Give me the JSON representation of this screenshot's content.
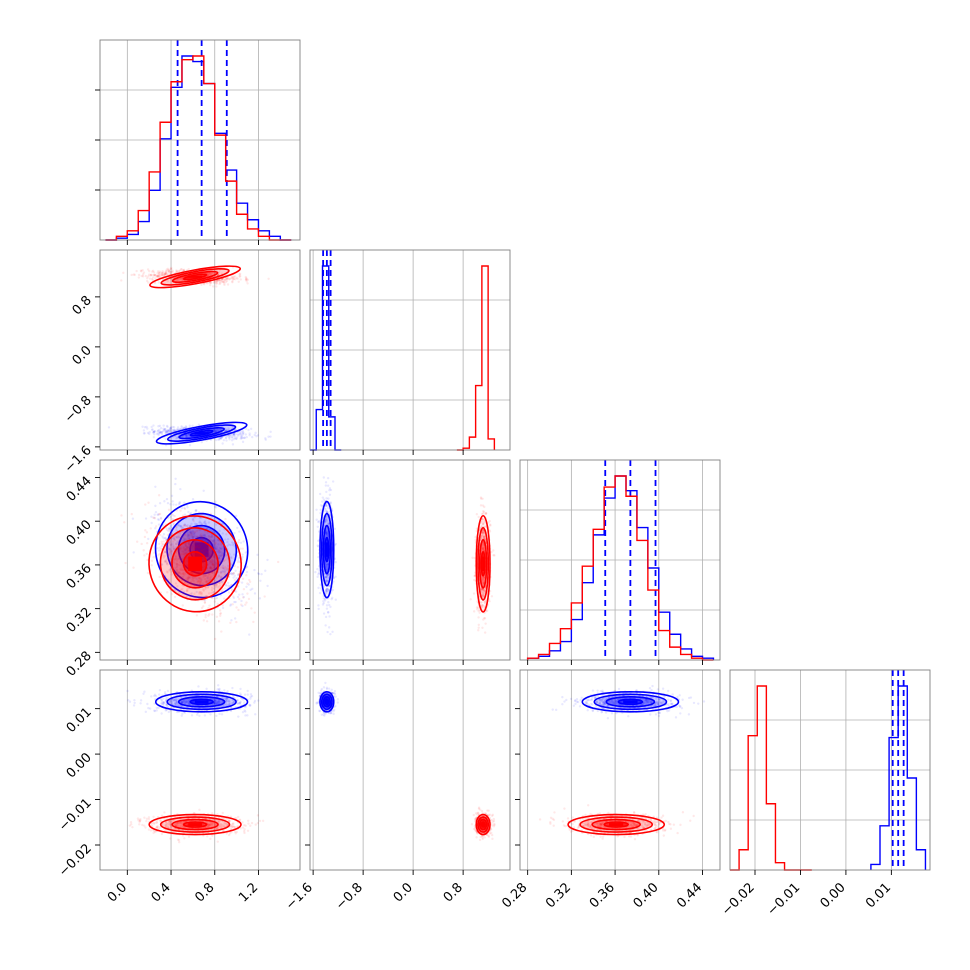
{
  "chart_data": {
    "type": "corner",
    "dims": 4,
    "colors": {
      "series_a": "#0000ff",
      "series_b": "#ff0000"
    },
    "axes": [
      {
        "range": [
          -0.25,
          1.58
        ],
        "ticks": [
          0.0,
          0.4,
          0.8,
          1.2
        ],
        "tick_labels": [
          "0.0",
          "0.4",
          "0.8",
          "1.2"
        ]
      },
      {
        "range": [
          -1.65,
          1.55
        ],
        "ticks": [
          -1.6,
          -0.8,
          0.0,
          0.8
        ],
        "tick_labels": [
          "−1.6",
          "−0.8",
          "0.0",
          "0.8"
        ]
      },
      {
        "range": [
          0.273,
          0.456
        ],
        "ticks": [
          0.28,
          0.32,
          0.36,
          0.4,
          0.44
        ],
        "tick_labels": [
          "0.28",
          "0.32",
          "0.36",
          "0.40",
          "0.44"
        ]
      },
      {
        "range": [
          -0.0255,
          0.0185
        ],
        "ticks": [
          -0.02,
          -0.01,
          0.0,
          0.01
        ],
        "tick_labels": [
          "−0.02",
          "−0.01",
          "0.00",
          "0.01"
        ]
      }
    ],
    "series": [
      {
        "color_key": "series_a",
        "means": [
          0.68,
          -1.38,
          0.374,
          0.0115
        ],
        "stds": [
          0.21,
          0.055,
          0.022,
          0.0011
        ],
        "quantiles": [
          [
            0.46,
            0.68,
            0.91
          ],
          [
            -1.44,
            -1.38,
            -1.32
          ],
          [
            0.351,
            0.374,
            0.397
          ],
          [
            0.0103,
            0.0115,
            0.0127
          ]
        ],
        "hist_edges": [
          [
            -0.2,
            -0.1,
            0.0,
            0.1,
            0.2,
            0.3,
            0.4,
            0.5,
            0.6,
            0.7,
            0.8,
            0.9,
            1.0,
            1.1,
            1.2,
            1.3,
            1.4,
            1.5
          ],
          [
            -1.65,
            -1.55,
            -1.45,
            -1.35,
            -1.25,
            -1.15
          ],
          [
            0.28,
            0.29,
            0.3,
            0.31,
            0.32,
            0.33,
            0.34,
            0.35,
            0.36,
            0.37,
            0.38,
            0.39,
            0.4,
            0.41,
            0.42,
            0.43,
            0.44,
            0.45
          ],
          [
            0.0055,
            0.0075,
            0.0095,
            0.0115,
            0.0135,
            0.0155,
            0.0175
          ]
        ],
        "hist_counts": [
          [
            0,
            1,
            3,
            10,
            27,
            55,
            83,
            100,
            97,
            85,
            58,
            38,
            20,
            11,
            5,
            2,
            0
          ],
          [
            0,
            22,
            100,
            18,
            0
          ],
          [
            1,
            2,
            5,
            10,
            22,
            42,
            68,
            88,
            100,
            92,
            72,
            50,
            26,
            14,
            6,
            2,
            1
          ],
          [
            3,
            24,
            72,
            100,
            50,
            11
          ]
        ]
      },
      {
        "color_key": "series_b",
        "means": [
          0.62,
          1.12,
          0.361,
          -0.0155
        ],
        "stds": [
          0.21,
          0.055,
          0.022,
          0.0011
        ],
        "quantiles": [],
        "hist_edges": [
          [
            -0.2,
            -0.1,
            0.0,
            0.1,
            0.2,
            0.3,
            0.4,
            0.5,
            0.6,
            0.7,
            0.8,
            0.9,
            1.0,
            1.1,
            1.2,
            1.3,
            1.4,
            1.5
          ],
          [
            0.7,
            0.8,
            0.9,
            1.0,
            1.1,
            1.2,
            1.3
          ],
          [
            0.28,
            0.29,
            0.3,
            0.31,
            0.32,
            0.33,
            0.34,
            0.35,
            0.36,
            0.37,
            0.38,
            0.39,
            0.4,
            0.41,
            0.42,
            0.43,
            0.44,
            0.45
          ],
          [
            -0.0255,
            -0.0235,
            -0.0215,
            -0.0195,
            -0.0175,
            -0.0155,
            -0.0135,
            -0.0115,
            -0.0095,
            -0.0075
          ]
        ],
        "hist_counts": [
          [
            0,
            2,
            5,
            16,
            37,
            64,
            86,
            98,
            100,
            85,
            57,
            32,
            14,
            6,
            2,
            0,
            0
          ],
          [
            0,
            1,
            7,
            35,
            100,
            6
          ],
          [
            1,
            3,
            9,
            17,
            31,
            51,
            71,
            94,
            100,
            89,
            65,
            38,
            16,
            7,
            3,
            1,
            0
          ],
          [
            0,
            11,
            73,
            100,
            36,
            4,
            0,
            0,
            0
          ]
        ]
      }
    ],
    "contour_levels": [
      0.5,
      1.0,
      1.5,
      2.0
    ],
    "grid": true
  }
}
